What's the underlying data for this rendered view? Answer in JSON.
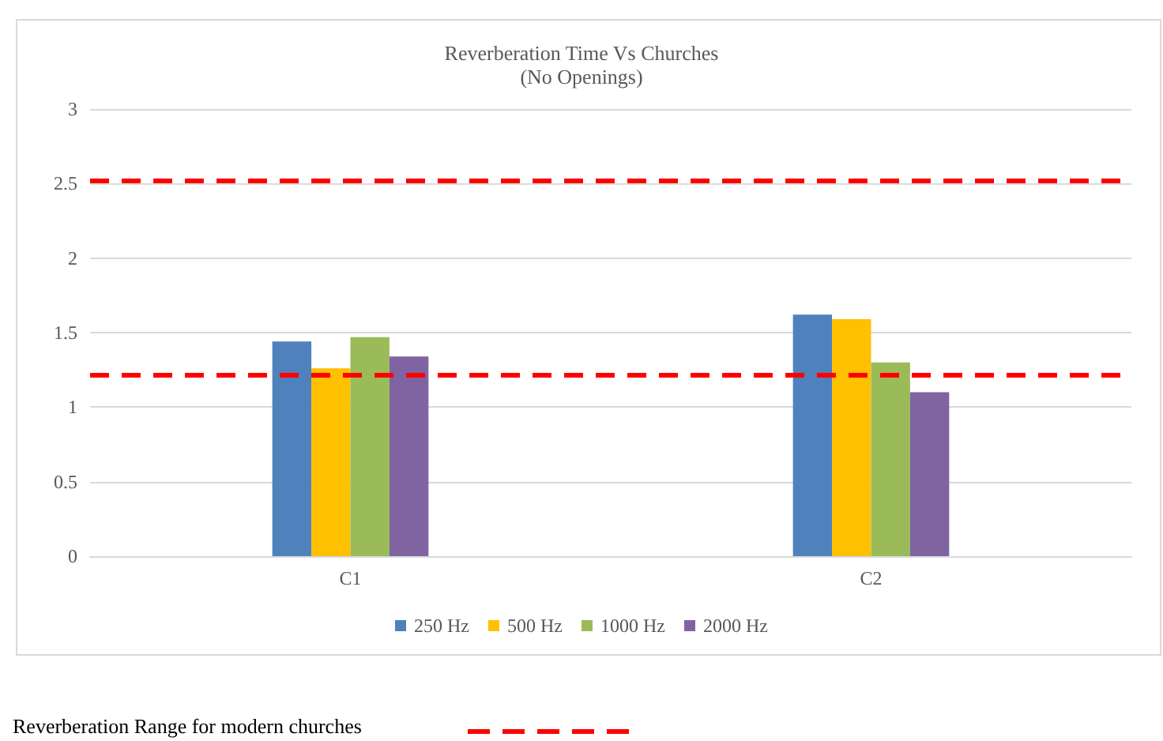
{
  "chart_data": {
    "type": "bar",
    "title": "Reverberation Time Vs Churches",
    "subtitle": "(No Openings)",
    "categories": [
      "C1",
      "C2"
    ],
    "series": [
      {
        "name": "250 Hz",
        "color": "#4f81bd",
        "values": [
          1.44,
          1.62
        ]
      },
      {
        "name": "500 Hz",
        "color": "#ffc000",
        "values": [
          1.26,
          1.59
        ]
      },
      {
        "name": "1000 Hz",
        "color": "#9bbb59",
        "values": [
          1.47,
          1.3
        ]
      },
      {
        "name": "2000 Hz",
        "color": "#8064a2",
        "values": [
          1.34,
          1.1
        ]
      }
    ],
    "ylim": [
      0,
      3
    ],
    "yticks": [
      0,
      0.5,
      1,
      1.5,
      2,
      2.5,
      3
    ],
    "grid": "y",
    "legend": "bottom",
    "ref_lines": [
      {
        "axis": "y",
        "value": 2.52,
        "label": null,
        "color": "#ff0000",
        "line_style": "dashed"
      },
      {
        "axis": "y",
        "value": 1.22,
        "label": null,
        "color": "#ff0000",
        "line_style": "dashed"
      }
    ],
    "annotations": [
      "Reverberation Range for modern churches"
    ]
  }
}
